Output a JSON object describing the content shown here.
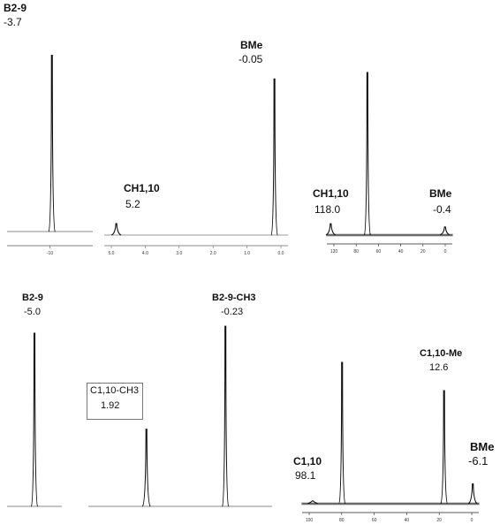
{
  "chart_data": [
    {
      "type": "line",
      "peaks": [
        {
          "shift": -3.7,
          "height": 0.95,
          "name": "B2-9",
          "value_text": "-3.7"
        }
      ],
      "tick_labels": [
        "-10"
      ]
    },
    {
      "type": "line",
      "peaks": [
        {
          "shift": 5.2,
          "height": 0.07,
          "name": "CH1,10",
          "value_text": "5.2"
        },
        {
          "shift": -0.05,
          "height": 0.95,
          "name": "BMe",
          "value_text": "-0.05"
        }
      ],
      "tick_labels": [
        "5.0",
        "4.0",
        "3.0",
        "2.0",
        "1.0",
        "0.0"
      ]
    },
    {
      "type": "line",
      "peaks": [
        {
          "shift": 118.0,
          "height": 0.07,
          "name": "CH1,10",
          "value_text": "118.0"
        },
        {
          "shift": 80,
          "height": 1.0,
          "name": "",
          "value_text": ""
        },
        {
          "shift": -0.4,
          "height": 0.05,
          "name": "BMe",
          "value_text": "-0.4"
        }
      ],
      "tick_labels": [
        "120",
        "80",
        "60",
        "40",
        "20",
        "0"
      ]
    },
    {
      "type": "line",
      "peaks": [
        {
          "shift": -5.0,
          "height": 0.98,
          "name": "B2-9",
          "value_text": "-5.0"
        }
      ],
      "tick_labels": []
    },
    {
      "type": "line",
      "peaks": [
        {
          "shift": 1.92,
          "height": 0.42,
          "name": "C1,10-CH3",
          "value_text": "1.92"
        },
        {
          "shift": -0.23,
          "height": 0.98,
          "name": "B2-9-CH3",
          "value_text": "-0.23"
        }
      ],
      "tick_labels": []
    },
    {
      "type": "line",
      "peaks": [
        {
          "shift": 98.1,
          "height": 0.02,
          "name": "C1,10",
          "value_text": "98.1"
        },
        {
          "shift": 79,
          "height": 1.0,
          "name": "",
          "value_text": ""
        },
        {
          "shift": 12.6,
          "height": 0.8,
          "name": "C1,10-Me",
          "value_text": "12.6"
        },
        {
          "shift": -6.1,
          "height": 0.14,
          "name": "BMe",
          "value_text": "-6.1"
        }
      ],
      "tick_labels": [
        "100",
        "80",
        "60",
        "40",
        "20",
        "0"
      ]
    }
  ]
}
